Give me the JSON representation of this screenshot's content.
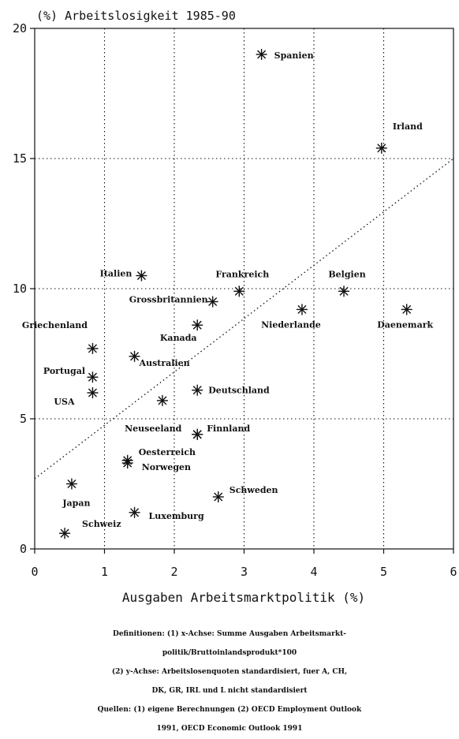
{
  "chart_data": {
    "type": "scatter",
    "title": "(%) Arbeitslosigkeit 1985-90",
    "xlabel": "Ausgaben Arbeitsmarktpolitik (%)",
    "ylabel": "",
    "xlim": [
      0,
      6
    ],
    "ylim": [
      0,
      20
    ],
    "xticks": [
      0,
      1,
      2,
      3,
      4,
      5,
      6
    ],
    "yticks": [
      0,
      5,
      10,
      15,
      20
    ],
    "grid": true,
    "trendline": {
      "x": [
        0,
        6
      ],
      "y": [
        2.7,
        15.0
      ]
    },
    "points": [
      {
        "label": "Spanien",
        "x": 3.25,
        "y": 19.0
      },
      {
        "label": "Irland",
        "x": 4.97,
        "y": 15.4
      },
      {
        "label": "Italien",
        "x": 1.53,
        "y": 10.5
      },
      {
        "label": "Frankreich",
        "x": 2.93,
        "y": 9.9
      },
      {
        "label": "Belgien",
        "x": 4.43,
        "y": 9.9
      },
      {
        "label": "Grossbritannien",
        "x": 2.55,
        "y": 9.5
      },
      {
        "label": "Niederlande",
        "x": 3.83,
        "y": 9.2
      },
      {
        "label": "Daenemark",
        "x": 5.33,
        "y": 9.2
      },
      {
        "label": "Kanada",
        "x": 2.33,
        "y": 8.6
      },
      {
        "label": "Griechenland",
        "x": 0.83,
        "y": 7.7
      },
      {
        "label": "Australien",
        "x": 1.43,
        "y": 7.4
      },
      {
        "label": "Portugal",
        "x": 0.83,
        "y": 6.6
      },
      {
        "label": "Deutschland",
        "x": 2.33,
        "y": 6.1
      },
      {
        "label": "USA",
        "x": 0.83,
        "y": 6.0
      },
      {
        "label": "",
        "x": 1.83,
        "y": 5.7
      },
      {
        "label": "Neuseeland",
        "x": 2.33,
        "y": 4.4
      },
      {
        "label": "Finnland",
        "x": 2.33,
        "y": 4.4
      },
      {
        "label": "Oesterreich",
        "x": 1.33,
        "y": 3.4
      },
      {
        "label": "Norwegen",
        "x": 1.33,
        "y": 3.3
      },
      {
        "label": "Japan",
        "x": 0.53,
        "y": 2.5
      },
      {
        "label": "Schweden",
        "x": 2.63,
        "y": 2.0
      },
      {
        "label": "Luxemburg",
        "x": 1.43,
        "y": 1.4
      },
      {
        "label": "Schweiz",
        "x": 0.43,
        "y": 0.6
      }
    ]
  },
  "notes": [
    "Definitionen: (1) x-Achse: Summe Ausgaben Arbeitsmarkt-",
    "politik/Bruttoinlandsprodukt*100",
    "(2) y-Achse: Arbeitslosenquoten standardisiert, fuer A, CH,",
    "DK, GR, IRL und L nicht standardisiert",
    "Quellen: (1) eigene Berechnungen (2) OECD Employment Outlook",
    "1991, OECD Economic Outlook 1991"
  ]
}
